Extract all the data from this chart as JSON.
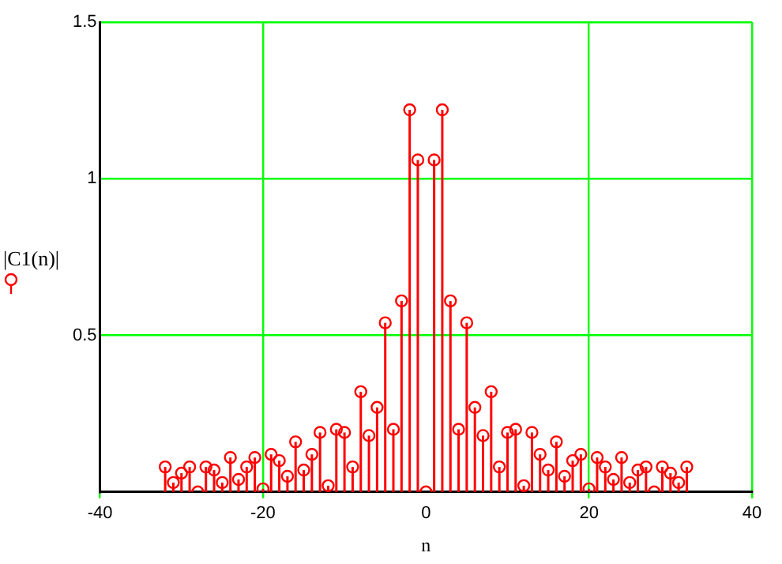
{
  "chart_data": {
    "type": "lollipop",
    "xlabel": "n",
    "ylabel": "|C1(n)|",
    "x": [
      -32,
      -31,
      -30,
      -29,
      -28,
      -27,
      -26,
      -25,
      -24,
      -23,
      -22,
      -21,
      -20,
      -19,
      -18,
      -17,
      -16,
      -15,
      -14,
      -13,
      -12,
      -11,
      -10,
      -9,
      -8,
      -7,
      -6,
      -5,
      -4,
      -3,
      -2,
      -1,
      0,
      1,
      2,
      3,
      4,
      5,
      6,
      7,
      8,
      9,
      10,
      11,
      12,
      13,
      14,
      15,
      16,
      17,
      18,
      19,
      20,
      21,
      22,
      23,
      24,
      25,
      26,
      27,
      28,
      29,
      30,
      31,
      32
    ],
    "values": [
      0.08,
      0.03,
      0.06,
      0.08,
      0.0,
      0.08,
      0.07,
      0.03,
      0.11,
      0.04,
      0.08,
      0.11,
      0.01,
      0.12,
      0.1,
      0.05,
      0.16,
      0.07,
      0.12,
      0.19,
      0.02,
      0.2,
      0.19,
      0.08,
      0.32,
      0.18,
      0.27,
      0.54,
      0.2,
      0.61,
      1.22,
      1.06,
      0,
      1.06,
      1.22,
      0.61,
      0.2,
      0.54,
      0.27,
      0.18,
      0.32,
      0.08,
      0.19,
      0.2,
      0.02,
      0.19,
      0.12,
      0.07,
      0.16,
      0.05,
      0.1,
      0.12,
      0.01,
      0.11,
      0.08,
      0.04,
      0.11,
      0.03,
      0.07,
      0.08,
      0.0,
      0.08,
      0.06,
      0.03,
      0.08
    ],
    "color": "#ff0000",
    "marker": "circle",
    "xlim": [
      -40,
      40
    ],
    "xticks": [
      -40,
      -20,
      0,
      20,
      40
    ],
    "ylim": [
      0,
      1.5
    ],
    "yticks": [
      0.5,
      1,
      1.5
    ],
    "grid": true
  }
}
